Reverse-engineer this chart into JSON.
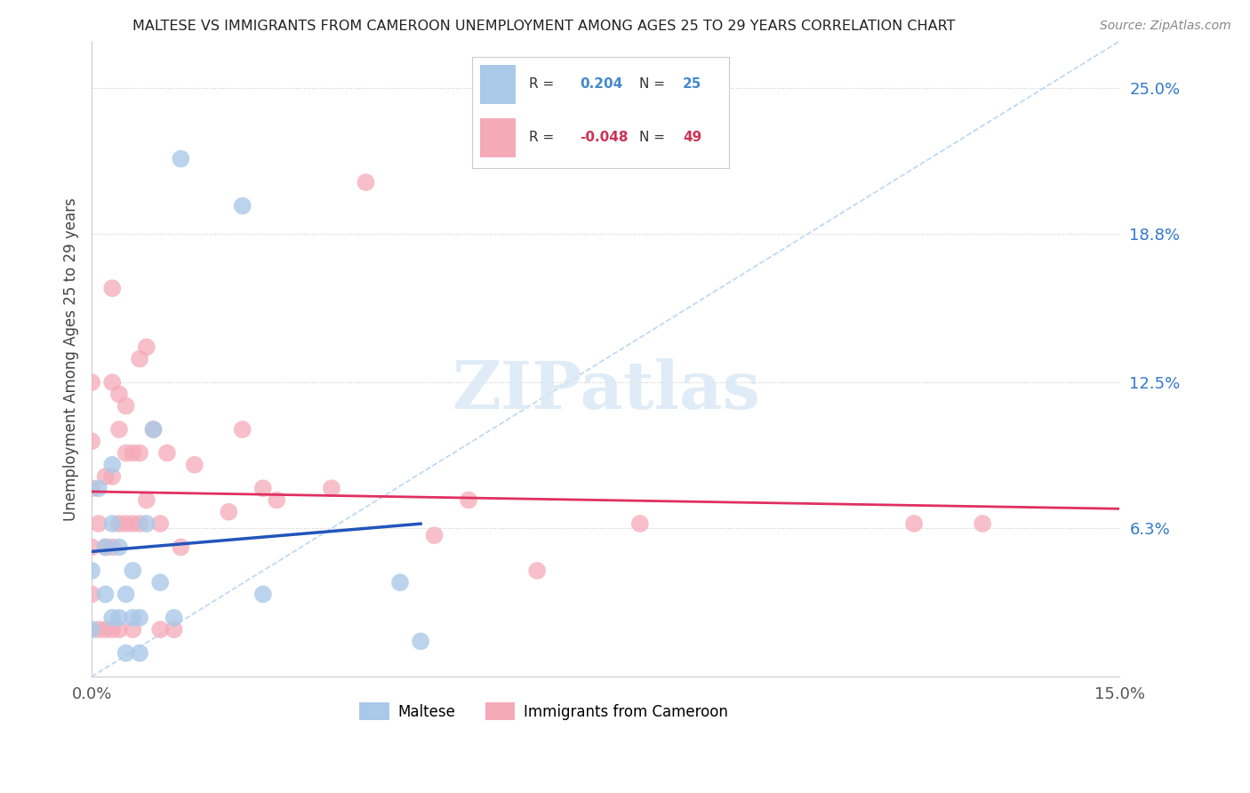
{
  "title": "MALTESE VS IMMIGRANTS FROM CAMEROON UNEMPLOYMENT AMONG AGES 25 TO 29 YEARS CORRELATION CHART",
  "source": "Source: ZipAtlas.com",
  "ylabel": "Unemployment Among Ages 25 to 29 years",
  "xlim": [
    0.0,
    0.15
  ],
  "ylim": [
    0.0,
    0.27
  ],
  "ytick_values": [
    0.063,
    0.125,
    0.188,
    0.25
  ],
  "ytick_labels": [
    "6.3%",
    "12.5%",
    "18.8%",
    "25.0%"
  ],
  "xtick_values": [
    0.0,
    0.15
  ],
  "xtick_labels": [
    "0.0%",
    "15.0%"
  ],
  "R_maltese": 0.204,
  "N_maltese": 25,
  "R_cameroon": -0.048,
  "N_cameroon": 49,
  "maltese_color": "#aac8e8",
  "cameroon_color": "#f5aab8",
  "maltese_line_color": "#2255bb",
  "cameroon_line_color": "#e03060",
  "ref_line_color": "#aaccee",
  "background_color": "#ffffff",
  "grid_color": "#cccccc",
  "maltese_x": [
    0.0,
    0.0,
    0.001,
    0.002,
    0.002,
    0.003,
    0.003,
    0.003,
    0.004,
    0.004,
    0.005,
    0.005,
    0.006,
    0.006,
    0.007,
    0.008,
    0.009,
    0.01,
    0.012,
    0.013,
    0.022,
    0.025,
    0.045,
    0.048,
    0.007
  ],
  "maltese_y": [
    0.045,
    0.02,
    0.08,
    0.035,
    0.055,
    0.025,
    0.065,
    0.09,
    0.025,
    0.055,
    0.01,
    0.035,
    0.025,
    0.045,
    0.025,
    0.065,
    0.105,
    0.04,
    0.025,
    0.22,
    0.2,
    0.035,
    0.04,
    0.015,
    0.01
  ],
  "cameroon_x": [
    0.0,
    0.0,
    0.0,
    0.0,
    0.0,
    0.001,
    0.001,
    0.002,
    0.002,
    0.002,
    0.003,
    0.003,
    0.003,
    0.003,
    0.004,
    0.004,
    0.004,
    0.005,
    0.005,
    0.005,
    0.006,
    0.006,
    0.006,
    0.007,
    0.007,
    0.007,
    0.008,
    0.008,
    0.009,
    0.01,
    0.01,
    0.011,
    0.012,
    0.013,
    0.015,
    0.02,
    0.022,
    0.025,
    0.027,
    0.035,
    0.04,
    0.05,
    0.055,
    0.065,
    0.08,
    0.12,
    0.13,
    0.003,
    0.004
  ],
  "cameroon_y": [
    0.035,
    0.055,
    0.08,
    0.1,
    0.125,
    0.02,
    0.065,
    0.02,
    0.055,
    0.085,
    0.02,
    0.055,
    0.085,
    0.125,
    0.02,
    0.065,
    0.12,
    0.065,
    0.095,
    0.115,
    0.02,
    0.065,
    0.095,
    0.065,
    0.095,
    0.135,
    0.075,
    0.14,
    0.105,
    0.02,
    0.065,
    0.095,
    0.02,
    0.055,
    0.09,
    0.07,
    0.105,
    0.08,
    0.075,
    0.08,
    0.21,
    0.06,
    0.075,
    0.045,
    0.065,
    0.065,
    0.065,
    0.165,
    0.105
  ],
  "watermark_text": "ZIPatlas",
  "watermark_color": "#d8e8f5",
  "legend_box_color": "#ffffff",
  "legend_border_color": "#dddddd",
  "maltese_R_color": "#4488cc",
  "cameroon_R_color": "#cc3355",
  "axis_label_color": "#555555",
  "right_tick_color": "#3377cc",
  "title_color": "#222222",
  "source_color": "#888888"
}
